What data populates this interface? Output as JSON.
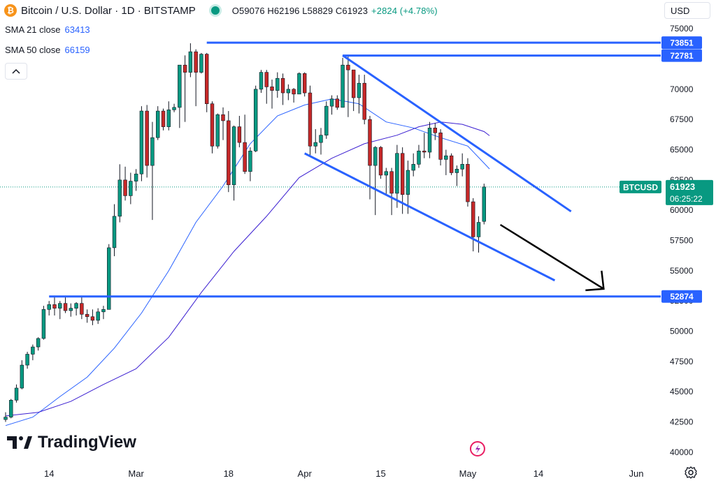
{
  "header": {
    "symbol_title": "Bitcoin / U.S. Dollar · 1D · BITSTAMP",
    "ohlc": "O59076 H62196 L58829 C61923",
    "change": "+2824 (+4.78%)"
  },
  "indicators": [
    {
      "label": "SMA 21 close",
      "value": "63413",
      "color": "#2962ff"
    },
    {
      "label": "SMA 50 close",
      "value": "66159",
      "color": "#3f2bd8"
    }
  ],
  "currency": "USD",
  "brand": "TradingView",
  "colors": {
    "up": "#089981",
    "down": "#c62828",
    "line": "#2962ff",
    "sma50": "#3b1fd1",
    "arrow": "#000000"
  },
  "chart_data": {
    "type": "candlestick",
    "symbol": "BTCUSD",
    "ylim": [
      39300,
      75300
    ],
    "y_ticks": [
      40000,
      42500,
      45000,
      47500,
      50000,
      52500,
      55000,
      57500,
      60000,
      62500,
      65000,
      67500,
      70000,
      72500,
      75000
    ],
    "x_ticks": [
      {
        "label": "14",
        "date": "2024-02-14"
      },
      {
        "label": "Mar",
        "date": "2024-03-01"
      },
      {
        "label": "18",
        "date": "2024-03-18"
      },
      {
        "label": "Apr",
        "date": "2024-04-01"
      },
      {
        "label": "15",
        "date": "2024-04-15"
      },
      {
        "label": "May",
        "date": "2024-05-01"
      },
      {
        "label": "14",
        "date": "2024-05-14"
      },
      {
        "label": "Jun",
        "date": "2024-06-01"
      }
    ],
    "first_date": "2024-02-06",
    "last_date": "2024-06-05",
    "candles": [
      [
        42700,
        43300,
        42500,
        42900
      ],
      [
        42900,
        44400,
        42800,
        44300
      ],
      [
        44300,
        45600,
        44100,
        45300
      ],
      [
        45300,
        47600,
        45200,
        47200
      ],
      [
        47200,
        48300,
        46900,
        48100
      ],
      [
        48100,
        48900,
        47600,
        48700
      ],
      [
        48700,
        49500,
        48400,
        49400
      ],
      [
        49400,
        52100,
        49300,
        51800
      ],
      [
        51800,
        52500,
        51300,
        52200
      ],
      [
        52200,
        52800,
        51300,
        51900
      ],
      [
        51900,
        52500,
        51000,
        52300
      ],
      [
        52300,
        52800,
        51500,
        51700
      ],
      [
        51700,
        52300,
        51200,
        51900
      ],
      [
        51900,
        52400,
        51300,
        52300
      ],
      [
        52300,
        52800,
        51000,
        51400
      ],
      [
        51400,
        51800,
        50700,
        51200
      ],
      [
        51200,
        51800,
        50500,
        50900
      ],
      [
        50900,
        51900,
        50600,
        51600
      ],
      [
        51600,
        52100,
        51000,
        51800
      ],
      [
        51800,
        57200,
        51800,
        56900
      ],
      [
        56900,
        60500,
        56200,
        59500
      ],
      [
        59500,
        63800,
        59000,
        62500
      ],
      [
        62500,
        63600,
        60800,
        61200
      ],
      [
        61200,
        63100,
        60500,
        62400
      ],
      [
        62400,
        63400,
        61600,
        63000
      ],
      [
        63000,
        68600,
        62400,
        68200
      ],
      [
        68200,
        68700,
        62700,
        63700
      ],
      [
        63700,
        67300,
        59200,
        66000
      ],
      [
        66000,
        68600,
        65800,
        68200
      ],
      [
        68200,
        68400,
        66600,
        66900
      ],
      [
        66900,
        69000,
        66600,
        68300
      ],
      [
        68300,
        68800,
        68100,
        68500
      ],
      [
        68500,
        71900,
        66800,
        72000
      ],
      [
        72000,
        72800,
        67300,
        71400
      ],
      [
        71400,
        73800,
        71000,
        73100
      ],
      [
        73100,
        73300,
        68600,
        71400
      ],
      [
        71400,
        73000,
        71300,
        72900
      ],
      [
        72900,
        73000,
        68100,
        68800
      ],
      [
        68800,
        69000,
        64700,
        65300
      ],
      [
        65300,
        68000,
        65100,
        67900
      ],
      [
        67900,
        68500,
        65800,
        67400
      ],
      [
        67400,
        68200,
        61500,
        62100
      ],
      [
        62100,
        67000,
        60800,
        66900
      ],
      [
        66900,
        67800,
        65200,
        65600
      ],
      [
        65600,
        67900,
        63000,
        63200
      ],
      [
        63200,
        65200,
        62400,
        64900
      ],
      [
        64900,
        70300,
        64800,
        70000
      ],
      [
        70000,
        71600,
        69700,
        71400
      ],
      [
        71400,
        71600,
        68800,
        70200
      ],
      [
        70200,
        70800,
        68400,
        69900
      ],
      [
        69900,
        71400,
        69300,
        70900
      ],
      [
        70900,
        71300,
        68700,
        69700
      ],
      [
        69700,
        70400,
        69100,
        70000
      ],
      [
        70000,
        70100,
        68900,
        69600
      ],
      [
        69600,
        71400,
        69600,
        71300
      ],
      [
        71300,
        71400,
        69400,
        69700
      ],
      [
        69700,
        70300,
        64500,
        65300
      ],
      [
        65300,
        66700,
        64700,
        65600
      ],
      [
        65600,
        66800,
        64600,
        66200
      ],
      [
        66200,
        69000,
        65900,
        68600
      ],
      [
        68600,
        69500,
        67900,
        69200
      ],
      [
        69200,
        69500,
        68300,
        68500
      ],
      [
        68500,
        72600,
        68500,
        72000
      ],
      [
        72000,
        72700,
        67700,
        71600
      ],
      [
        71600,
        71600,
        68200,
        69300
      ],
      [
        69300,
        71200,
        68000,
        70500
      ],
      [
        70500,
        71200,
        67100,
        67500
      ],
      [
        67500,
        67800,
        60900,
        63700
      ],
      [
        63700,
        65300,
        59600,
        65200
      ],
      [
        65200,
        65300,
        62600,
        62900
      ],
      [
        62900,
        63500,
        61200,
        63200
      ],
      [
        63200,
        63500,
        59600,
        61400
      ],
      [
        61400,
        65400,
        60200,
        64700
      ],
      [
        64700,
        65200,
        59700,
        61300
      ],
      [
        61300,
        64100,
        59700,
        63300
      ],
      [
        63300,
        64700,
        62800,
        63800
      ],
      [
        63800,
        65400,
        63500,
        64900
      ],
      [
        64900,
        66400,
        64300,
        64800
      ],
      [
        64800,
        67300,
        64300,
        66800
      ],
      [
        66800,
        67200,
        65800,
        66400
      ],
      [
        66400,
        66700,
        63700,
        64200
      ],
      [
        64200,
        65000,
        62900,
        64500
      ],
      [
        64500,
        64700,
        62900,
        63100
      ],
      [
        63100,
        63700,
        62000,
        63400
      ],
      [
        63400,
        64700,
        62800,
        63800
      ],
      [
        63800,
        64300,
        60300,
        60700
      ],
      [
        60700,
        61000,
        56600,
        57800
      ],
      [
        57800,
        59500,
        56500,
        59000
      ],
      [
        59076,
        62196,
        58829,
        61923
      ]
    ],
    "sma21": [
      [
        0,
        42200
      ],
      [
        5,
        42900
      ],
      [
        10,
        44600
      ],
      [
        15,
        46200
      ],
      [
        20,
        48600
      ],
      [
        25,
        51500
      ],
      [
        30,
        55000
      ],
      [
        35,
        59000
      ],
      [
        40,
        62000
      ],
      [
        45,
        65500
      ],
      [
        50,
        67800
      ],
      [
        55,
        68700
      ],
      [
        60,
        69200
      ],
      [
        65,
        68800
      ],
      [
        70,
        67300
      ],
      [
        75,
        66800
      ],
      [
        80,
        66000
      ],
      [
        85,
        65300
      ],
      [
        89,
        63413
      ]
    ],
    "sma50": [
      [
        0,
        43000
      ],
      [
        6,
        43300
      ],
      [
        12,
        44200
      ],
      [
        18,
        45600
      ],
      [
        24,
        46900
      ],
      [
        30,
        49500
      ],
      [
        36,
        53200
      ],
      [
        42,
        56600
      ],
      [
        48,
        59500
      ],
      [
        54,
        62700
      ],
      [
        60,
        64300
      ],
      [
        66,
        65500
      ],
      [
        72,
        66200
      ],
      [
        76,
        66900
      ],
      [
        80,
        67300
      ],
      [
        84,
        67100
      ],
      [
        88,
        66500
      ],
      [
        89,
        66159
      ]
    ],
    "levels": [
      {
        "label": "73851",
        "value": 73851,
        "from_date": "2024-03-14"
      },
      {
        "label": "72781",
        "value": 72781,
        "from_date": "2024-04-08"
      },
      {
        "label": "52874",
        "value": 52874,
        "from_date": "2024-02-14"
      }
    ],
    "channel_upper": [
      {
        "date": "2024-04-08",
        "value": 72800
      },
      {
        "date": "2024-05-20",
        "value": 59900
      }
    ],
    "channel_lower": [
      {
        "date": "2024-04-01",
        "value": 64700
      },
      {
        "date": "2024-05-17",
        "value": 54200
      }
    ],
    "arrow": [
      {
        "date": "2024-05-07",
        "value": 58800
      },
      {
        "date": "2024-05-26",
        "value": 53500
      }
    ],
    "last_price": {
      "label": "BTCUSD",
      "value": 61923,
      "display": "61923",
      "countdown": "06:25:22"
    }
  }
}
